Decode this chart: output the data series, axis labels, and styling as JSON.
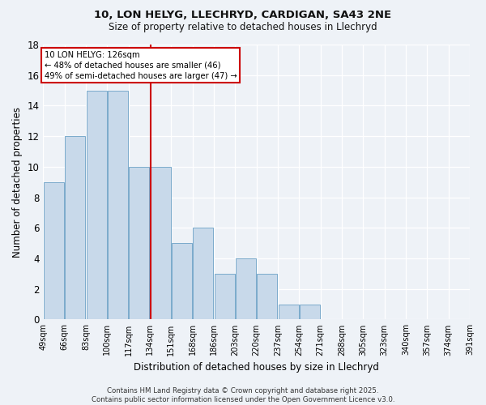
{
  "title1": "10, LON HELYG, LLECHRYD, CARDIGAN, SA43 2NE",
  "title2": "Size of property relative to detached houses in Llechryd",
  "xlabel": "Distribution of detached houses by size in Llechryd",
  "ylabel": "Number of detached properties",
  "footer": "Contains HM Land Registry data © Crown copyright and database right 2025.\nContains public sector information licensed under the Open Government Licence v3.0.",
  "bin_labels": [
    "49sqm",
    "66sqm",
    "83sqm",
    "100sqm",
    "117sqm",
    "134sqm",
    "151sqm",
    "168sqm",
    "186sqm",
    "203sqm",
    "220sqm",
    "237sqm",
    "254sqm",
    "271sqm",
    "288sqm",
    "305sqm",
    "323sqm",
    "340sqm",
    "357sqm",
    "374sqm",
    "391sqm"
  ],
  "bar_values": [
    9,
    12,
    15,
    15,
    10,
    10,
    5,
    6,
    3,
    4,
    3,
    1,
    1,
    0,
    0,
    0,
    0,
    0,
    0,
    0
  ],
  "annotation_title": "10 LON HELYG: 126sqm",
  "annotation_line1": "← 48% of detached houses are smaller (46)",
  "annotation_line2": "49% of semi-detached houses are larger (47) →",
  "bar_color": "#c8d9ea",
  "bar_edge_color": "#7aaacb",
  "vline_color": "#cc0000",
  "annotation_box_color": "#ffffff",
  "annotation_box_edge": "#cc0000",
  "background_color": "#eef2f7",
  "ylim": [
    0,
    18
  ],
  "yticks": [
    0,
    2,
    4,
    6,
    8,
    10,
    12,
    14,
    16,
    18
  ],
  "vline_bin_index": 4.53,
  "num_bins": 20,
  "num_labels": 21
}
